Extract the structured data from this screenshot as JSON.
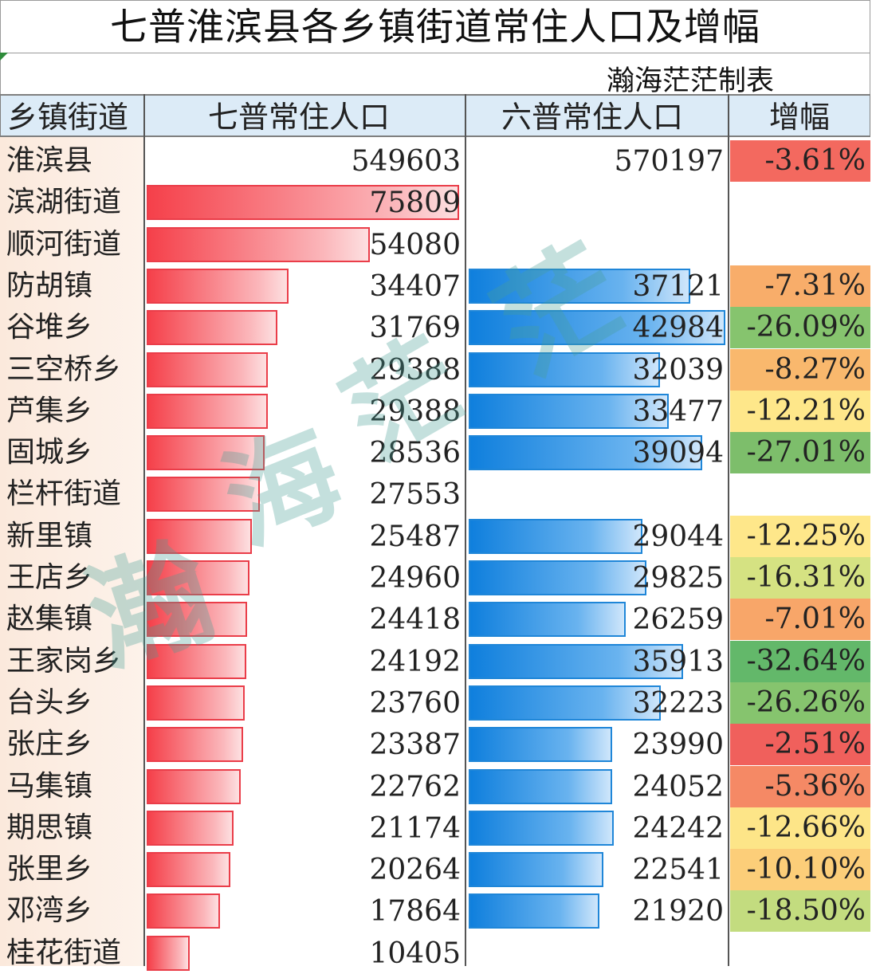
{
  "title": "七普淮滨县各乡镇街道常住人口及增幅",
  "credit": "瀚海茫茫制表",
  "headers": {
    "name": "乡镇街道",
    "pop7": "七普常住人口",
    "pop6": "六普常住人口",
    "growth": "增幅"
  },
  "colors": {
    "red_bar": "#f5404a",
    "blue_bar": "#0f7fdd",
    "header_bg": "#dcebf7",
    "watermark": "#46a096"
  },
  "watermark_chars": [
    "瀚",
    "海",
    "茫",
    "茫"
  ],
  "rows": [
    {
      "name": "淮滨县",
      "pop7": "549603",
      "pop6": "570197",
      "growth": "-3.61%",
      "gcolor": "#f3695f",
      "bar": false
    },
    {
      "name": "滨湖街道",
      "pop7": "75809",
      "pop6": "",
      "growth": "",
      "gcolor": "#ffffff",
      "bar": true
    },
    {
      "name": "顺河街道",
      "pop7": "54080",
      "pop6": "",
      "growth": "",
      "gcolor": "#ffffff",
      "bar": true
    },
    {
      "name": "防胡镇",
      "pop7": "34407",
      "pop6": "37121",
      "growth": "-7.31%",
      "gcolor": "#f8ad6a",
      "bar": true
    },
    {
      "name": "谷堆乡",
      "pop7": "31769",
      "pop6": "42984",
      "growth": "-26.09%",
      "gcolor": "#86c46e",
      "bar": true
    },
    {
      "name": "三空桥乡",
      "pop7": "29388",
      "pop6": "32039",
      "growth": "-8.27%",
      "gcolor": "#f9b86d",
      "bar": true
    },
    {
      "name": "芦集乡",
      "pop7": "29388",
      "pop6": "33477",
      "growth": "-12.21%",
      "gcolor": "#fee78a",
      "bar": true
    },
    {
      "name": "固城乡",
      "pop7": "28536",
      "pop6": "39094",
      "growth": "-27.01%",
      "gcolor": "#7dbe6b",
      "bar": true
    },
    {
      "name": "栏杆街道",
      "pop7": "27553",
      "pop6": "",
      "growth": "",
      "gcolor": "#ffffff",
      "bar": true
    },
    {
      "name": "新里镇",
      "pop7": "25487",
      "pop6": "29044",
      "growth": "-12.25%",
      "gcolor": "#fee78a",
      "bar": true
    },
    {
      "name": "王店乡",
      "pop7": "24960",
      "pop6": "29825",
      "growth": "-16.31%",
      "gcolor": "#d5e282",
      "bar": true
    },
    {
      "name": "赵集镇",
      "pop7": "24418",
      "pop6": "26259",
      "growth": "-7.01%",
      "gcolor": "#f8a669",
      "bar": true
    },
    {
      "name": "王家岗乡",
      "pop7": "24192",
      "pop6": "35913",
      "growth": "-32.64%",
      "gcolor": "#63b86a",
      "bar": true
    },
    {
      "name": "台头乡",
      "pop7": "23760",
      "pop6": "32223",
      "growth": "-26.26%",
      "gcolor": "#86c46e",
      "bar": true
    },
    {
      "name": "张庄乡",
      "pop7": "23387",
      "pop6": "23990",
      "growth": "-2.51%",
      "gcolor": "#f0605c",
      "bar": true
    },
    {
      "name": "马集镇",
      "pop7": "22762",
      "pop6": "24052",
      "growth": "-5.36%",
      "gcolor": "#f58965",
      "bar": true
    },
    {
      "name": "期思镇",
      "pop7": "21174",
      "pop6": "24242",
      "growth": "-12.66%",
      "gcolor": "#fde588",
      "bar": true
    },
    {
      "name": "张里乡",
      "pop7": "20264",
      "pop6": "22541",
      "growth": "-10.10%",
      "gcolor": "#fcce79",
      "bar": true
    },
    {
      "name": "邓湾乡",
      "pop7": "17864",
      "pop6": "21920",
      "growth": "-18.50%",
      "gcolor": "#c3dc7f",
      "bar": true
    },
    {
      "name": "桂花街道",
      "pop7": "10405",
      "pop6": "",
      "growth": "",
      "gcolor": "#ffffff",
      "bar": true
    }
  ]
}
